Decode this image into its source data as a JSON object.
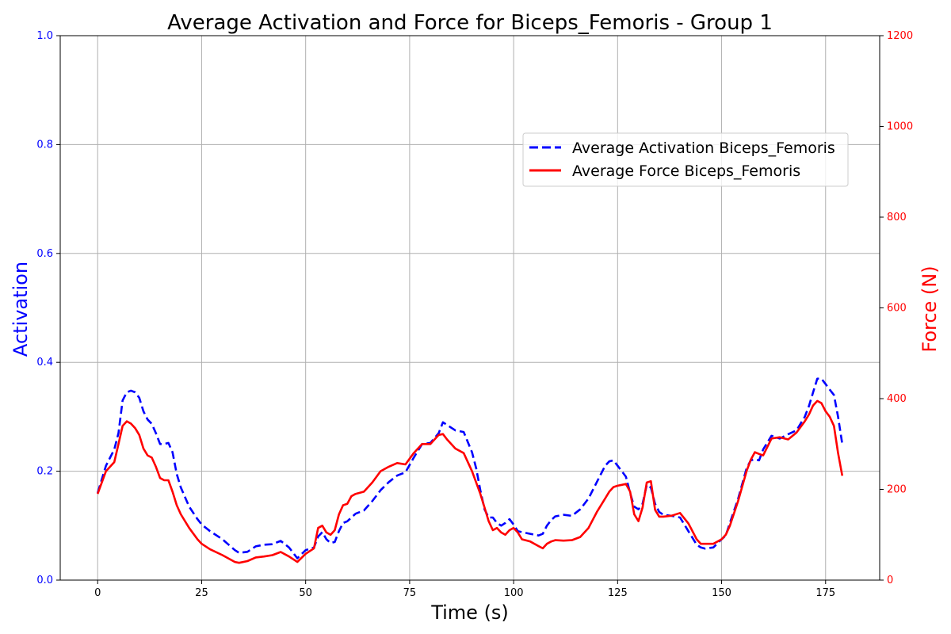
{
  "chart_data": {
    "type": "line",
    "title": "Average Activation and Force for Biceps_Femoris - Group 1",
    "xlabel": "Time (s)",
    "ylabel_left": "Activation",
    "ylabel_right": "Force (N)",
    "xlim": [
      -9,
      188
    ],
    "ylim_left": [
      0,
      1
    ],
    "ylim_right": [
      0,
      1200
    ],
    "x_ticks": [
      0,
      25,
      50,
      75,
      100,
      125,
      150,
      175
    ],
    "x_tick_labels": [
      "0",
      "25",
      "50",
      "75",
      "100",
      "125",
      "150",
      "175"
    ],
    "y_left_ticks": [
      0,
      0.2,
      0.4,
      0.6,
      0.8,
      1.0
    ],
    "y_left_tick_labels": [
      "0.0",
      "0.2",
      "0.4",
      "0.6",
      "0.8",
      "1.0"
    ],
    "y_right_ticks": [
      0,
      200,
      400,
      600,
      800,
      1000,
      1200
    ],
    "y_right_tick_labels": [
      "0",
      "200",
      "400",
      "600",
      "800",
      "1000",
      "1200"
    ],
    "grid": true,
    "legend_position": "upper-right",
    "colors": {
      "activation": "#0000ff",
      "force": "#ff0000",
      "grid": "#b0b0b0"
    },
    "series": [
      {
        "name": "Average Activation Biceps_Femoris",
        "axis": "left",
        "style": "dashed",
        "color": "#0000ff",
        "x": [
          0,
          2,
          4,
          5,
          6,
          7,
          8,
          9,
          10,
          11,
          12,
          13,
          14,
          15,
          16,
          17,
          18,
          19,
          20,
          22,
          24,
          25,
          27,
          30,
          33,
          34,
          36,
          38,
          40,
          42,
          44,
          46,
          48,
          50,
          52,
          53,
          54,
          55,
          56,
          57,
          58,
          59,
          60,
          61,
          62,
          64,
          66,
          68,
          70,
          72,
          74,
          76,
          78,
          80,
          82,
          83,
          84,
          86,
          88,
          90,
          91,
          92,
          93,
          94,
          95,
          96,
          97,
          98,
          99,
          100,
          101,
          102,
          104,
          106,
          107,
          108,
          109,
          110,
          112,
          114,
          116,
          118,
          120,
          122,
          123,
          124,
          125,
          126,
          127,
          128,
          129,
          130,
          131,
          132,
          133,
          134,
          135,
          136,
          138,
          140,
          142,
          144,
          145,
          146,
          148,
          150,
          151,
          152,
          154,
          156,
          157,
          158,
          159,
          160,
          162,
          164,
          166,
          168,
          170,
          171,
          172,
          173,
          174,
          175,
          176,
          177,
          178,
          179
        ],
        "y": [
          0.16,
          0.21,
          0.24,
          0.27,
          0.33,
          0.345,
          0.348,
          0.345,
          0.335,
          0.31,
          0.295,
          0.287,
          0.27,
          0.25,
          0.25,
          0.252,
          0.235,
          0.195,
          0.17,
          0.135,
          0.112,
          0.102,
          0.09,
          0.075,
          0.055,
          0.05,
          0.052,
          0.062,
          0.065,
          0.066,
          0.072,
          0.06,
          0.04,
          0.055,
          0.06,
          0.08,
          0.088,
          0.075,
          0.068,
          0.07,
          0.09,
          0.105,
          0.108,
          0.115,
          0.122,
          0.128,
          0.145,
          0.165,
          0.18,
          0.192,
          0.198,
          0.225,
          0.25,
          0.252,
          0.27,
          0.29,
          0.285,
          0.275,
          0.272,
          0.235,
          0.205,
          0.165,
          0.13,
          0.115,
          0.115,
          0.105,
          0.1,
          0.105,
          0.112,
          0.102,
          0.09,
          0.088,
          0.085,
          0.082,
          0.085,
          0.1,
          0.11,
          0.117,
          0.12,
          0.118,
          0.13,
          0.15,
          0.18,
          0.21,
          0.218,
          0.22,
          0.21,
          0.2,
          0.19,
          0.16,
          0.135,
          0.13,
          0.14,
          0.175,
          0.17,
          0.14,
          0.125,
          0.12,
          0.118,
          0.115,
          0.09,
          0.065,
          0.06,
          0.058,
          0.06,
          0.075,
          0.082,
          0.105,
          0.15,
          0.205,
          0.22,
          0.222,
          0.22,
          0.24,
          0.265,
          0.26,
          0.268,
          0.275,
          0.3,
          0.32,
          0.345,
          0.37,
          0.37,
          0.36,
          0.35,
          0.34,
          0.3,
          0.25
        ]
      },
      {
        "name": "Average Force Biceps_Femoris",
        "axis": "right",
        "style": "solid",
        "color": "#ff0000",
        "x": [
          0,
          2,
          4,
          5,
          6,
          7,
          8,
          9,
          10,
          11,
          12,
          13,
          14,
          15,
          16,
          17,
          18,
          19,
          20,
          22,
          24,
          25,
          27,
          30,
          33,
          34,
          36,
          38,
          40,
          42,
          44,
          46,
          48,
          50,
          52,
          53,
          54,
          55,
          56,
          57,
          58,
          59,
          60,
          61,
          62,
          64,
          66,
          68,
          70,
          72,
          74,
          76,
          78,
          80,
          82,
          83,
          84,
          86,
          88,
          90,
          91,
          92,
          93,
          94,
          95,
          96,
          97,
          98,
          99,
          100,
          101,
          102,
          104,
          106,
          107,
          108,
          109,
          110,
          112,
          114,
          116,
          118,
          120,
          122,
          123,
          124,
          125,
          126,
          127,
          128,
          129,
          130,
          131,
          132,
          133,
          134,
          135,
          136,
          138,
          140,
          142,
          144,
          145,
          146,
          148,
          150,
          151,
          152,
          154,
          156,
          157,
          158,
          159,
          160,
          162,
          164,
          166,
          168,
          170,
          171,
          172,
          173,
          174,
          175,
          176,
          177,
          178,
          179
        ],
        "y": [
          190,
          240,
          260,
          300,
          340,
          350,
          345,
          335,
          320,
          290,
          275,
          270,
          250,
          225,
          220,
          220,
          195,
          165,
          145,
          115,
          90,
          80,
          68,
          55,
          40,
          38,
          42,
          50,
          52,
          55,
          62,
          52,
          40,
          58,
          70,
          115,
          120,
          105,
          100,
          110,
          145,
          165,
          168,
          185,
          190,
          195,
          215,
          240,
          250,
          258,
          255,
          280,
          300,
          300,
          320,
          322,
          310,
          290,
          280,
          240,
          215,
          190,
          160,
          130,
          110,
          115,
          105,
          100,
          110,
          115,
          105,
          90,
          85,
          75,
          70,
          80,
          85,
          88,
          87,
          88,
          95,
          115,
          150,
          180,
          195,
          205,
          208,
          210,
          212,
          195,
          145,
          130,
          160,
          215,
          218,
          155,
          140,
          140,
          142,
          148,
          125,
          90,
          80,
          80,
          80,
          90,
          100,
          120,
          175,
          240,
          265,
          282,
          278,
          275,
          312,
          315,
          310,
          325,
          350,
          365,
          385,
          395,
          390,
          372,
          360,
          340,
          280,
          230
        ]
      }
    ]
  }
}
